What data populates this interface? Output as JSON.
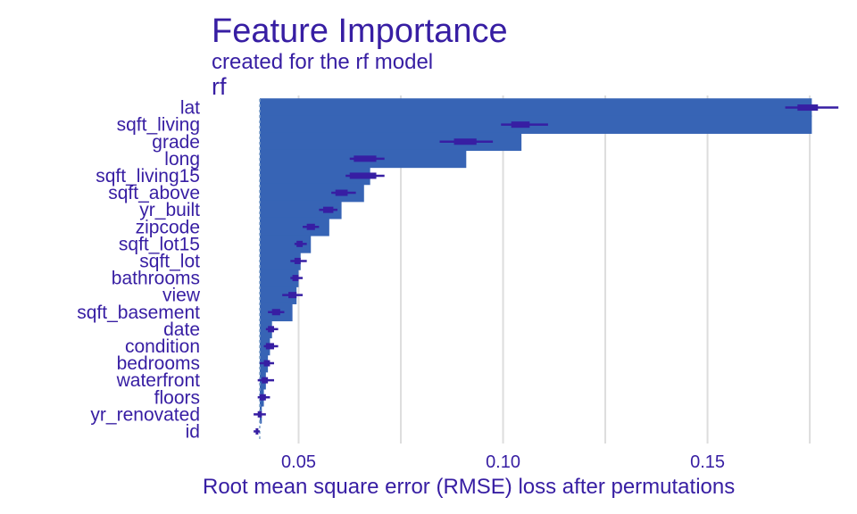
{
  "header": {
    "title": "Feature Importance",
    "subtitle": "created for the rf model",
    "facet_label": "rf"
  },
  "colors": {
    "bar": "#3764B5",
    "text": "#371EA3",
    "interval": "#371EA3",
    "grid": "#DDDDDD",
    "baseline": "#7FA1C8"
  },
  "chart_data": {
    "type": "bar",
    "orientation": "horizontal",
    "title": "Feature Importance",
    "subtitle": "created for the rf model",
    "facet": "rf",
    "xlabel": "Root mean square error (RMSE) loss after permutations",
    "ylabel": "",
    "xlim": [
      0.0285,
      0.18
    ],
    "baseline": 0.0405,
    "x_ticks": [
      0.05,
      0.1,
      0.15
    ],
    "x_tick_labels": [
      "0.05",
      "0.10",
      "0.15"
    ],
    "grid": true,
    "categories": [
      "lat",
      "sqft_living",
      "grade",
      "long",
      "sqft_living15",
      "sqft_above",
      "yr_built",
      "zipcode",
      "sqft_lot15",
      "sqft_lot",
      "bathrooms",
      "view",
      "sqft_basement",
      "date",
      "condition",
      "bedrooms",
      "waterfront",
      "floors",
      "yr_renovated",
      "id"
    ],
    "values": [
      0.1755,
      0.1755,
      0.1045,
      0.091,
      0.0675,
      0.066,
      0.0605,
      0.0575,
      0.053,
      0.0505,
      0.05,
      0.0495,
      0.0485,
      0.0435,
      0.043,
      0.0425,
      0.042,
      0.0415,
      0.041,
      0.0405
    ],
    "box_low": [
      0.172,
      0.102,
      0.088,
      0.0635,
      0.0625,
      0.059,
      0.056,
      0.052,
      0.0495,
      0.049,
      0.0485,
      0.0475,
      0.0435,
      0.0425,
      0.042,
      0.0415,
      0.041,
      0.0405,
      0.04,
      0.0395
    ],
    "box_high": [
      0.177,
      0.1065,
      0.0935,
      0.069,
      0.069,
      0.062,
      0.0585,
      0.054,
      0.051,
      0.0505,
      0.05,
      0.0495,
      0.0455,
      0.044,
      0.044,
      0.043,
      0.0425,
      0.042,
      0.041,
      0.04
    ],
    "whisker_low": [
      0.169,
      0.0995,
      0.0845,
      0.0625,
      0.0615,
      0.058,
      0.055,
      0.051,
      0.049,
      0.048,
      0.048,
      0.046,
      0.0425,
      0.042,
      0.0415,
      0.0405,
      0.04,
      0.04,
      0.039,
      0.039
    ],
    "whisker_high": [
      0.182,
      0.111,
      0.0975,
      0.071,
      0.071,
      0.064,
      0.0595,
      0.055,
      0.052,
      0.052,
      0.051,
      0.051,
      0.0465,
      0.045,
      0.045,
      0.044,
      0.044,
      0.043,
      0.042,
      0.0405
    ],
    "show_values": false
  }
}
